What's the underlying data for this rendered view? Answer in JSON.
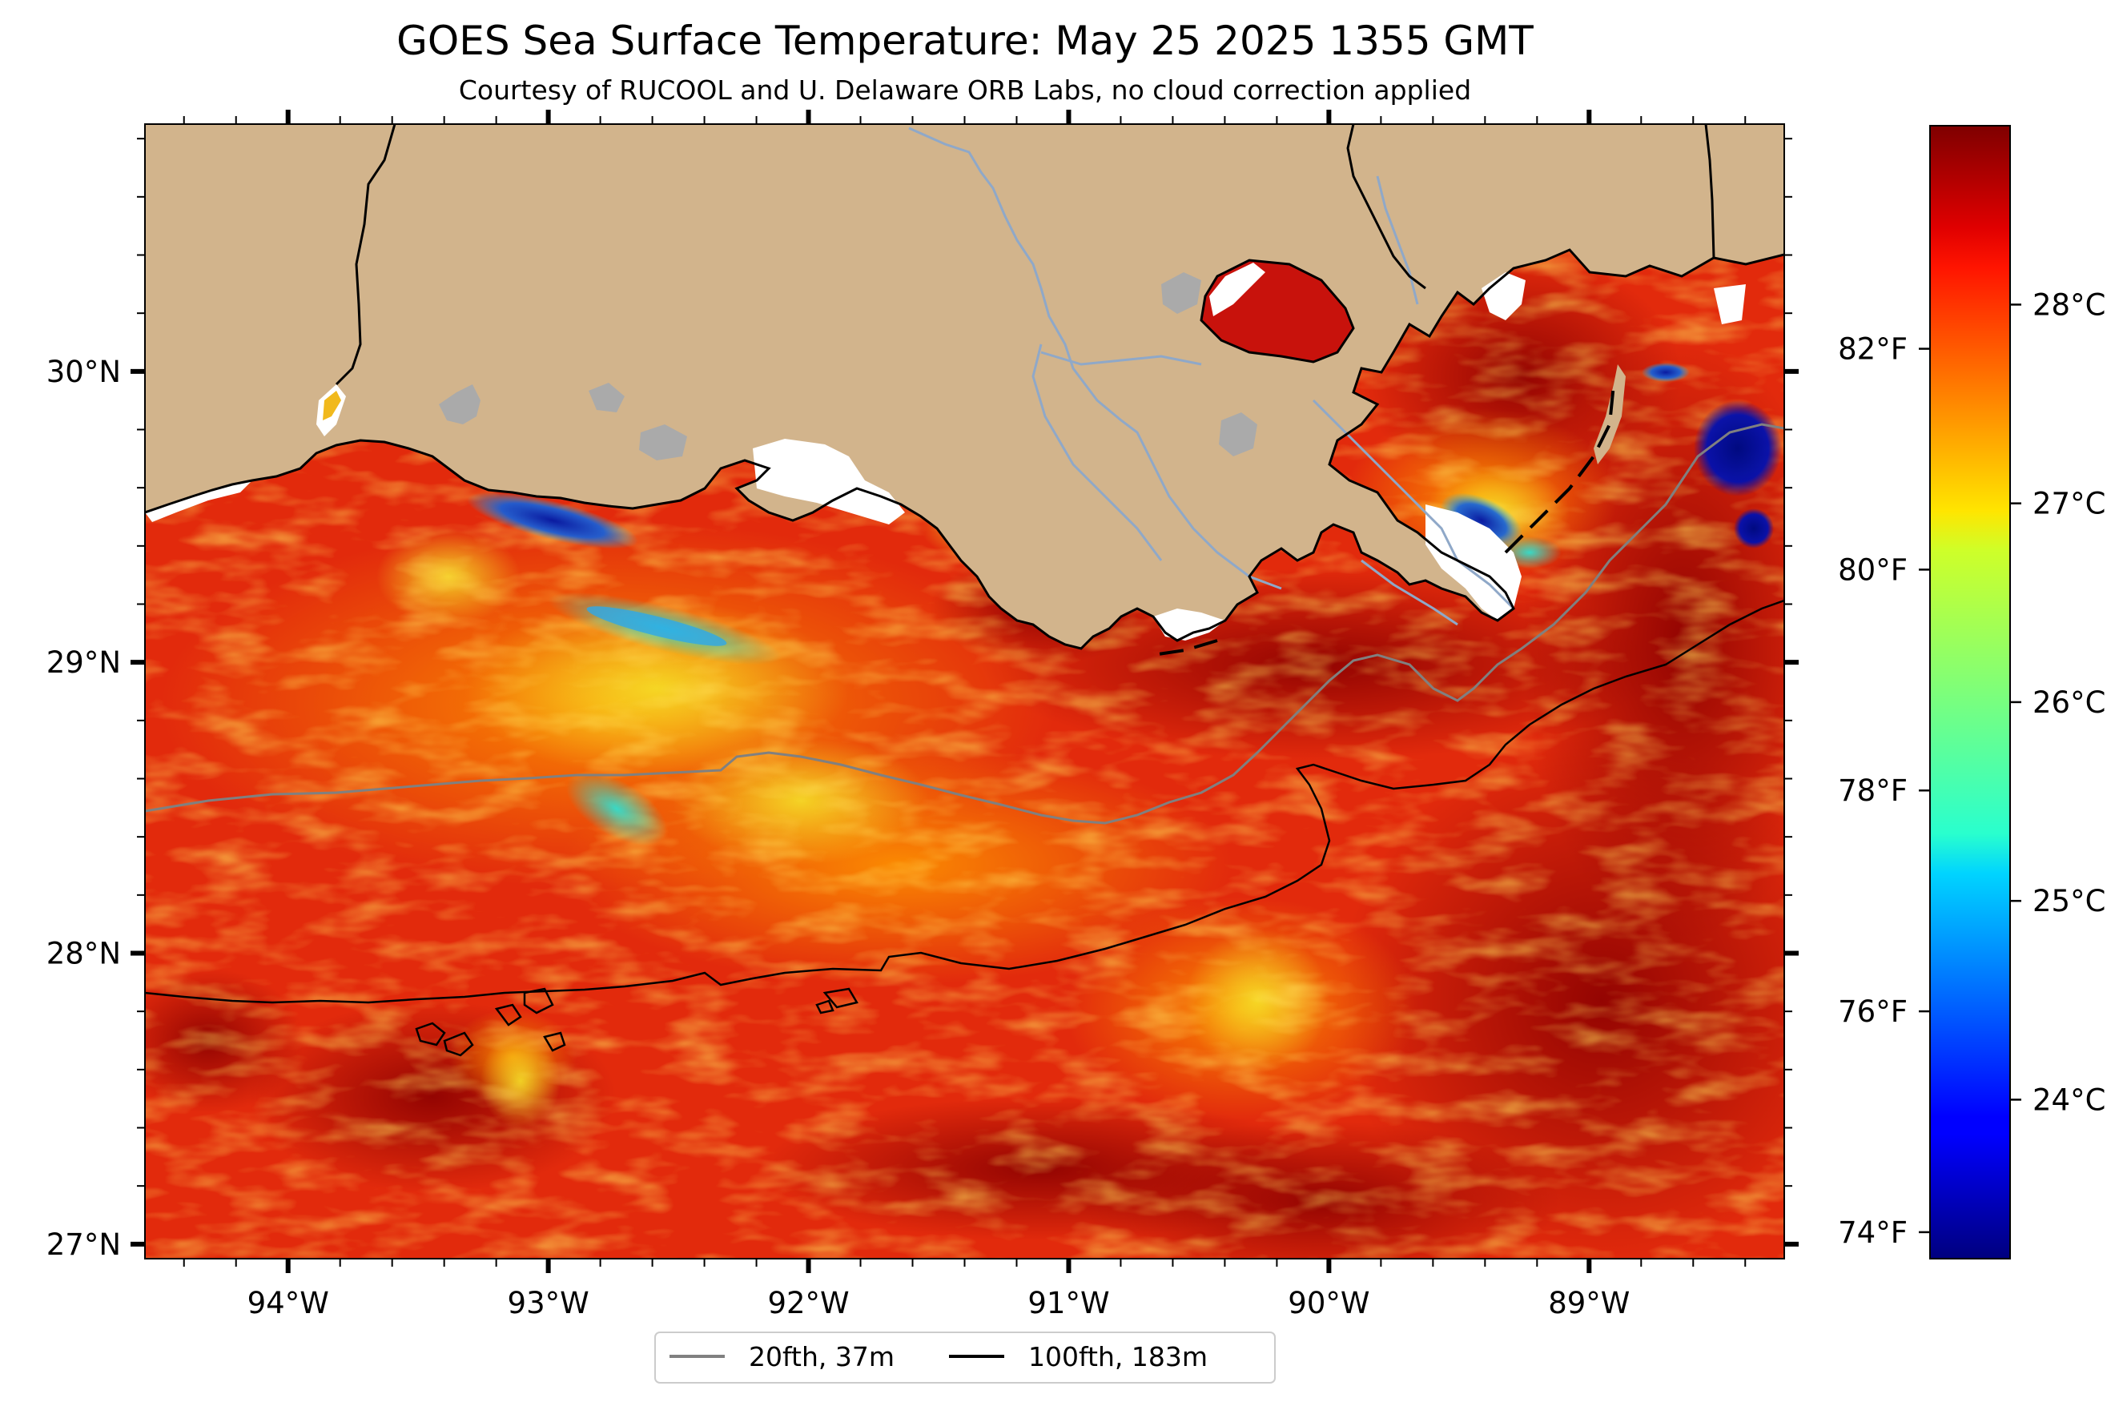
{
  "title": "GOES Sea Surface Temperature: May 25 2025 1355 GMT",
  "subtitle": "Courtesy of RUCOOL and U. Delaware ORB Labs, no cloud correction applied",
  "map": {
    "lon_range": [
      -94.55,
      -88.25
    ],
    "lat_range": [
      26.95,
      30.85
    ],
    "land_color": "#D2B48C",
    "lake_color": "#AAAAAA",
    "river_color": "#8FA8C8",
    "cloud_color": "#FFFFFF",
    "lon_ticks": [
      {
        "value": -94,
        "label": "94°W"
      },
      {
        "value": -93,
        "label": "93°W"
      },
      {
        "value": -92,
        "label": "92°W"
      },
      {
        "value": -91,
        "label": "91°W"
      },
      {
        "value": -90,
        "label": "90°W"
      },
      {
        "value": -89,
        "label": "89°W"
      }
    ],
    "lat_ticks": [
      {
        "value": 30,
        "label": "30°N"
      },
      {
        "value": 29,
        "label": "29°N"
      },
      {
        "value": 28,
        "label": "28°N"
      },
      {
        "value": 27,
        "label": "27°N"
      }
    ]
  },
  "colorbar": {
    "colormap": "jet",
    "celsius_ticks": [
      {
        "value": 28,
        "label": "28°C"
      },
      {
        "value": 27,
        "label": "27°C"
      },
      {
        "value": 26,
        "label": "26°C"
      },
      {
        "value": 25,
        "label": "25°C"
      },
      {
        "value": 24,
        "label": "24°C"
      }
    ],
    "fahrenheit_ticks": [
      {
        "value": 82,
        "label": "82°F"
      },
      {
        "value": 80,
        "label": "80°F"
      },
      {
        "value": 78,
        "label": "78°F"
      },
      {
        "value": 76,
        "label": "76°F"
      },
      {
        "value": 74,
        "label": "74°F"
      }
    ]
  },
  "legend": {
    "items": [
      {
        "label": "20fth, 37m",
        "color": "#808080"
      },
      {
        "label": "100fth, 183m",
        "color": "#000000"
      }
    ]
  }
}
